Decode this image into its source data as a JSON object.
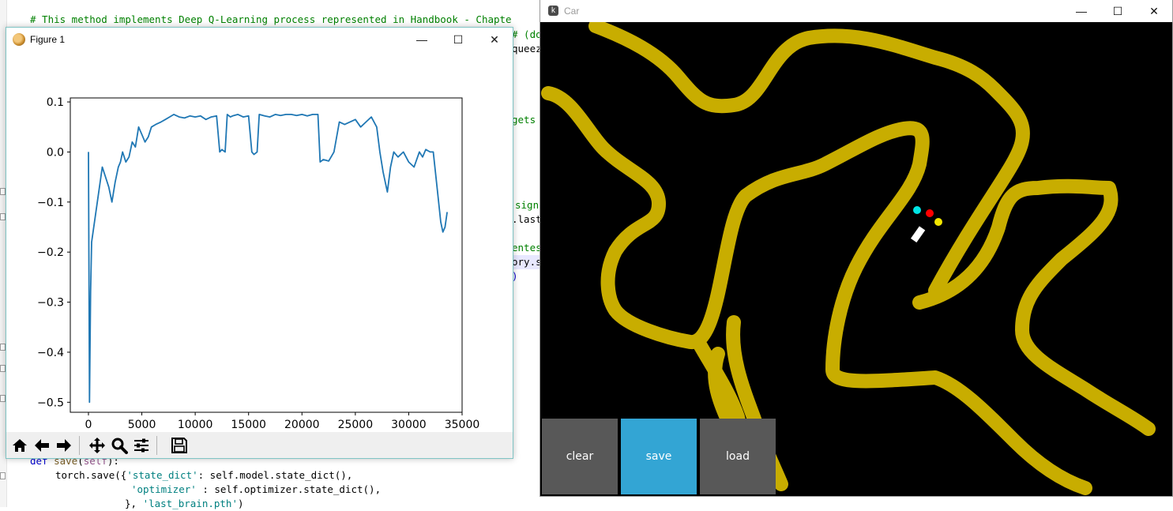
{
  "editor": {
    "top_comment": "# This method implements Deep Q-Learning process represented in Handbook - Chapte",
    "right_frag_1": "# (do",
    "right_frag_2": "queez",
    "right_frag_3": "gets",
    "right_frag_4": "sign",
    "right_frag_5": ".last",
    "right_frag_6": "entes",
    "right_frag_7": "ory.s",
    "right_frag_8": ")",
    "line_def_kw": "def",
    "line_def_name": "save",
    "line_def_self": "self",
    "line_def_rest": "):",
    "line_torch": "torch.save({",
    "line_key1": "'state_dict'",
    "line_val1": ": self.model.state_dict(),",
    "line_key2": "'optimizer'",
    "line_val2": " : self.optimizer.state_dict(),",
    "line_end1": "}, ",
    "line_end2": "'last_brain.pth'",
    "line_end3": ")"
  },
  "figure": {
    "title": "Figure 1",
    "minimize": "—",
    "maximize": "☐",
    "close": "✕"
  },
  "chart_data": {
    "type": "line",
    "title": "",
    "xlabel": "",
    "ylabel": "",
    "xlim": [
      -1700,
      35000
    ],
    "ylim": [
      -0.52,
      0.108
    ],
    "xticks": [
      0,
      5000,
      10000,
      15000,
      20000,
      25000,
      30000,
      35000
    ],
    "xtick_labels": [
      "0",
      "5000",
      "10000",
      "15000",
      "20000",
      "25000",
      "30000",
      "35000"
    ],
    "yticks": [
      0.1,
      0.0,
      -0.1,
      -0.2,
      -0.3,
      -0.4,
      -0.5
    ],
    "ytick_labels": [
      "0.1",
      "0.0",
      "−0.1",
      "−0.2",
      "−0.3",
      "−0.4",
      "−0.5"
    ],
    "grid": false,
    "color": "#1f77b4",
    "series": [
      {
        "x": [
          0,
          100,
          200,
          300,
          500,
          700,
          900,
          1100,
          1300,
          1600,
          1900,
          2200,
          2500,
          2800,
          3000,
          3200,
          3500,
          3800,
          4100,
          4400,
          4700,
          5000,
          5300,
          5600,
          5900,
          6300,
          6800,
          7200,
          7600,
          8000,
          8500,
          9000,
          9500,
          10000,
          10500,
          11000,
          11500,
          12000,
          12300,
          12500,
          12800,
          13000,
          13300,
          13500,
          14000,
          14500,
          15000,
          15300,
          15500,
          15800,
          16000,
          16500,
          17000,
          17500,
          18000,
          18500,
          19000,
          19500,
          20000,
          20500,
          21000,
          21500,
          21700,
          22000,
          22500,
          23000,
          23500,
          24000,
          24500,
          25000,
          25500,
          26000,
          26500,
          27000,
          27300,
          27600,
          27800,
          28000,
          28300,
          28600,
          29000,
          29500,
          30000,
          30500,
          31000,
          31300,
          31600,
          32000,
          32300,
          32600,
          32800,
          33000,
          33200,
          33400,
          33600
        ],
        "y": [
          0.0,
          -0.5,
          -0.28,
          -0.18,
          -0.15,
          -0.12,
          -0.09,
          -0.06,
          -0.03,
          -0.05,
          -0.07,
          -0.1,
          -0.06,
          -0.03,
          -0.02,
          0.0,
          -0.02,
          -0.01,
          0.02,
          0.01,
          0.05,
          0.035,
          0.02,
          0.03,
          0.05,
          0.055,
          0.06,
          0.065,
          0.07,
          0.075,
          0.07,
          0.068,
          0.072,
          0.07,
          0.072,
          0.065,
          0.07,
          0.072,
          0.0,
          0.005,
          0.0,
          0.075,
          0.07,
          0.072,
          0.075,
          0.07,
          0.072,
          0.0,
          -0.005,
          0.0,
          0.075,
          0.072,
          0.07,
          0.075,
          0.073,
          0.075,
          0.075,
          0.073,
          0.075,
          0.072,
          0.075,
          0.075,
          -0.02,
          -0.015,
          -0.018,
          0.0,
          0.06,
          0.055,
          0.06,
          0.065,
          0.05,
          0.06,
          0.07,
          0.05,
          0.0,
          -0.04,
          -0.06,
          -0.08,
          -0.03,
          0.0,
          -0.01,
          0.0,
          -0.02,
          -0.03,
          0.0,
          -0.01,
          0.005,
          0.0,
          0.0,
          -0.06,
          -0.1,
          -0.14,
          -0.16,
          -0.15,
          -0.12
        ]
      }
    ]
  },
  "toolbar": {
    "home": "home-icon",
    "back": "back-arrow-icon",
    "forward": "forward-arrow-icon",
    "pan": "pan-icon",
    "zoom": "zoom-icon",
    "configure": "configure-subplots-icon",
    "save": "save-icon"
  },
  "car": {
    "title": "Car",
    "minimize": "—",
    "maximize": "☐",
    "close": "✕",
    "road_color": "#c8ad00",
    "background": "#000000",
    "sensors": [
      "#00e5e5",
      "#ff0000",
      "#f2e600"
    ],
    "buttons": {
      "clear": "clear",
      "save": "save",
      "load": "load"
    },
    "button_colors": {
      "clear": "#585858",
      "save": "#33a5d4",
      "load": "#585858"
    }
  }
}
